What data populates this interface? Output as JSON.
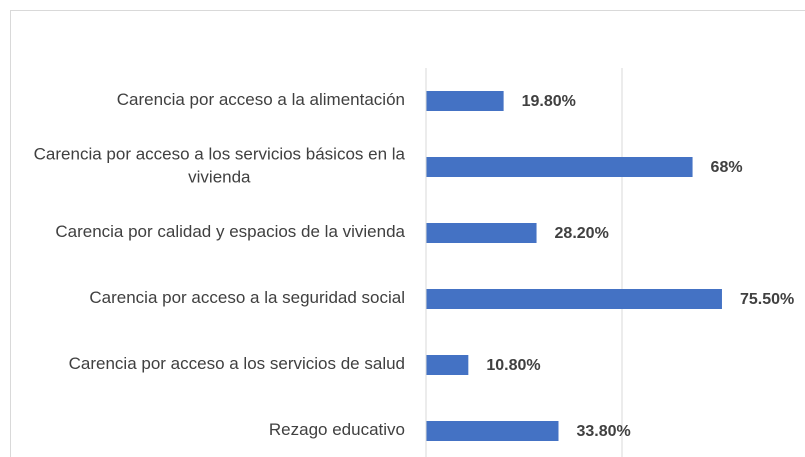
{
  "chart_data": {
    "type": "bar",
    "orientation": "horizontal",
    "categories": [
      "Carencia por acceso a la alimentación",
      "Carencia por acceso a los servicios básicos en la vivienda",
      "Carencia por calidad y espacios de la vivienda",
      "Carencia por acceso a la seguridad social",
      "Carencia por acceso a los servicios de salud",
      "Rezago educativo"
    ],
    "values": [
      19.8,
      68,
      28.2,
      75.5,
      10.8,
      33.8
    ],
    "value_labels": [
      "19.80%",
      "68%",
      "28.20%",
      "75.50%",
      "10.80%",
      "33.80%"
    ],
    "color": "#4472c4",
    "xlim": [
      0,
      100
    ],
    "xticks": [
      0,
      50
    ],
    "grid": true
  }
}
